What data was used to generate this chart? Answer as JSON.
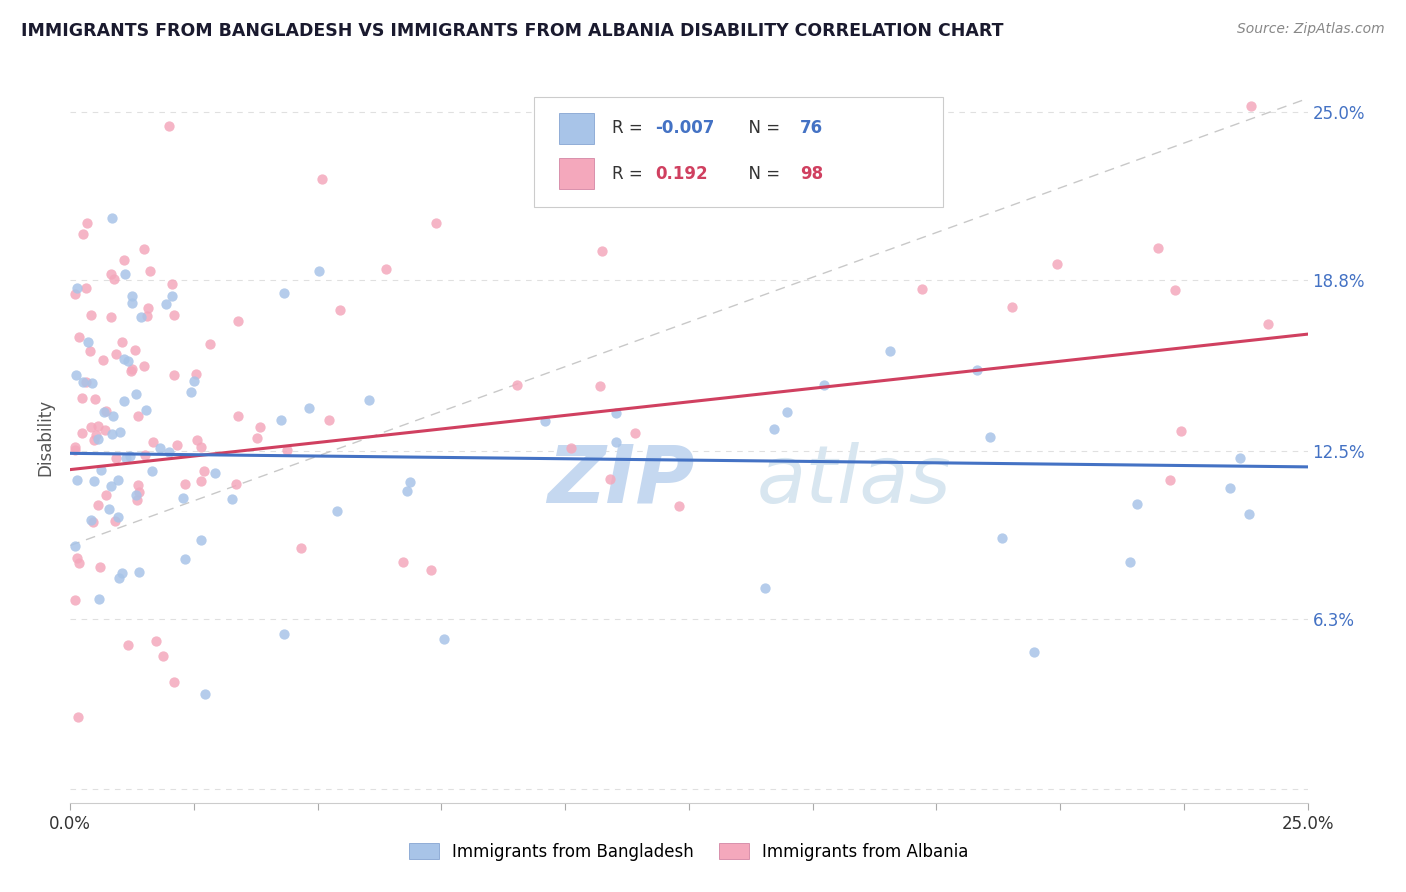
{
  "title": "IMMIGRANTS FROM BANGLADESH VS IMMIGRANTS FROM ALBANIA DISABILITY CORRELATION CHART",
  "source": "Source: ZipAtlas.com",
  "ylabel": "Disability",
  "ytick_vals": [
    0.0,
    0.063,
    0.125,
    0.188,
    0.25
  ],
  "ytick_labels": [
    "",
    "6.3%",
    "12.5%",
    "18.8%",
    "25.0%"
  ],
  "xlim": [
    0.0,
    0.25
  ],
  "ylim": [
    -0.005,
    0.265
  ],
  "legend1_label": "Immigrants from Bangladesh",
  "legend2_label": "Immigrants from Albania",
  "r1": "-0.007",
  "n1": "76",
  "r2": "0.192",
  "n2": "98",
  "color1": "#a8c4e8",
  "color2": "#f4a8bc",
  "trendline1_color": "#4472c4",
  "trendline2_color": "#d04060",
  "watermark_zip": "#b8cce8",
  "watermark_atlas": "#c8d8e8",
  "background_color": "#ffffff",
  "grid_color": "#e0e0e0",
  "title_color": "#1a1a2e",
  "source_color": "#888888"
}
